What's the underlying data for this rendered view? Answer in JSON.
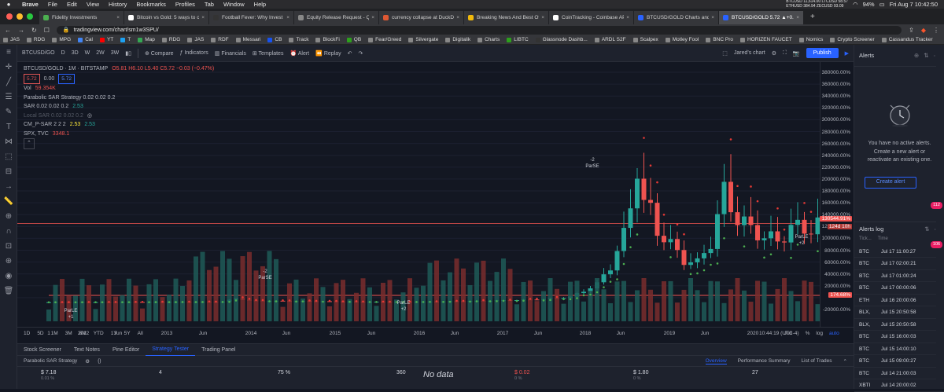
{
  "menubar": {
    "app": "Brave",
    "items": [
      "File",
      "Edit",
      "View",
      "History",
      "Bookmarks",
      "Profiles",
      "Tab",
      "Window",
      "Help"
    ],
    "ticker1": "BTCUSD 11,614.00 LTCUSD 58.57",
    "ticker2": "ETHUSD 384.94  ZECUSD 93.09",
    "battery": "94%",
    "datetime": "Fri Aug 7  10:42:50"
  },
  "tabs": [
    {
      "title": "Fidelity Investments",
      "color": "#4caf50"
    },
    {
      "title": "Bitcoin vs Gold: 5 ways to comp",
      "color": "#fff"
    },
    {
      "title": "Football Fever: Why Invest in the",
      "color": "#333"
    },
    {
      "title": "Equity Release Request - Quant",
      "color": "#888"
    },
    {
      "title": "currency collapse at DuckDuckG",
      "color": "#de5833"
    },
    {
      "title": "Breaking News And Best Of The",
      "color": "#f0b90b"
    },
    {
      "title": "CoinTracking - Coinbase API Im",
      "color": "#fff"
    },
    {
      "title": "BTCUSD/GOLD Charts and Quo",
      "color": "#2962ff"
    },
    {
      "title": "BTCUSD/GOLD 5.72 ▲+0.35%",
      "color": "#2962ff"
    }
  ],
  "url": "tradingview.com/chart/sm1w3SPU/",
  "bookmarks": [
    {
      "label": "JAS",
      "color": "#888"
    },
    {
      "label": "RDG",
      "color": "#888"
    },
    {
      "label": "MPG",
      "color": "#888"
    },
    {
      "label": "Cal",
      "color": "#4285f4"
    },
    {
      "label": "YT",
      "color": "#f00"
    },
    {
      "label": "T",
      "color": "#1da1f2"
    },
    {
      "label": "Map",
      "color": "#34a853"
    },
    {
      "label": "RDG",
      "color": "#888"
    },
    {
      "label": "JAS",
      "color": "#888"
    },
    {
      "label": "RDF",
      "color": "#888"
    },
    {
      "label": "Messari",
      "color": "#888"
    },
    {
      "label": "CB",
      "color": "#1652f0"
    },
    {
      "label": "Track",
      "color": "#888"
    },
    {
      "label": "BlockFi",
      "color": "#888"
    },
    {
      "label": "QB",
      "color": "#2ca01c"
    },
    {
      "label": "Fear/Greed",
      "color": "#888"
    },
    {
      "label": "Silvergate",
      "color": "#888"
    },
    {
      "label": "Digitalik",
      "color": "#888"
    },
    {
      "label": "Charts",
      "color": "#888"
    },
    {
      "label": "LIBTC",
      "color": "#2ca01c"
    },
    {
      "label": "Glassnode Dashb...",
      "color": "#333"
    },
    {
      "label": "ARDL S2F",
      "color": "#888"
    },
    {
      "label": "Scalpex",
      "color": "#888"
    },
    {
      "label": "Motley Fool",
      "color": "#888"
    },
    {
      "label": "BNC Pro",
      "color": "#888"
    },
    {
      "label": "HORIZEN FAUCET",
      "color": "#888"
    },
    {
      "label": "Nomics",
      "color": "#888"
    },
    {
      "label": "Crypto Screener",
      "color": "#888"
    },
    {
      "label": "Cassandus Tracker",
      "color": "#888"
    }
  ],
  "toolbar": {
    "symbol": "BTCUSD/GO",
    "intervals": [
      "D",
      "3D",
      "W",
      "2W",
      "3W"
    ],
    "compare": "Compare",
    "indicators": "Indicators",
    "financials": "Financials",
    "templates": "Templates",
    "alert": "Alert",
    "replay": "Replay",
    "layout": "Jared's chart",
    "publish": "Publish"
  },
  "legend": {
    "title": "BTCUSD/GOLD · 1M · BITSTAMP",
    "ohlc": "O5.81 H6.10 L5.40 C5.72 −0.03 (−0.47%)",
    "price_sell": "5.72",
    "spread": "0.00",
    "price_buy": "5.72",
    "vol_label": "Vol",
    "vol_value": "59.354K",
    "strategy": "Parabolic SAR Strategy 0.02 0.02 0.2",
    "sar_label": "SAR 0.02 0.02 0.2",
    "sar_value": "2.53",
    "local_sar": "Local SAR 0.02 0.02 0.2",
    "cm_label": "CM_P-SAR 2 2 2",
    "cm_v1": "2.53",
    "cm_v2": "2.53",
    "spx_label": "SPX, TVC",
    "spx_value": "3348.1"
  },
  "chart_data": {
    "type": "candlestick",
    "y_unit": "%",
    "y_ticks": [
      "380000.00%",
      "360000.00%",
      "340000.00%",
      "320000.00%",
      "300000.00%",
      "280000.00%",
      "260000.00%",
      "240000.00%",
      "220000.00%",
      "200000.00%",
      "180000.00%",
      "160000.00%",
      "140000.00%",
      "120000.00%",
      "100000.00%",
      "80000.00%",
      "60000.00%",
      "40000.00%",
      "20000.00%",
      "-20000.00%"
    ],
    "x_ticks": [
      "1",
      "2012",
      "Jun",
      "2013",
      "Jun",
      "2014",
      "Jun",
      "2015",
      "Jun",
      "2016",
      "Jun",
      "2017",
      "Jun",
      "2018",
      "Jun",
      "2019",
      "Jun",
      "2020",
      "Jun"
    ],
    "price_tag": "130544.91%",
    "price_tag2": "124d 10h",
    "low_tag": "174.68%",
    "annotations": [
      {
        "text": "ParLE",
        "sub": "+1"
      },
      {
        "text": "-2",
        "sub": "ParSE"
      },
      {
        "text": "ParLE",
        "sub": "+2"
      },
      {
        "text": "-2",
        "sub": "ParSE"
      },
      {
        "text": "ParLE",
        "sub": "+2"
      }
    ],
    "up_color": "#26a69a",
    "down_color": "#ef5350"
  },
  "range_buttons": [
    "1D",
    "5D",
    "1M",
    "3M",
    "6M",
    "YTD",
    "1Y",
    "5Y",
    "All"
  ],
  "time_info": {
    "clock": "10:44:19 (UTC-4)",
    "pct": "%",
    "log": "log",
    "auto": "auto"
  },
  "bottom_tabs": [
    "Stock Screener",
    "Text Notes",
    "Pine Editor",
    "Strategy Tester",
    "Trading Panel"
  ],
  "strategy_bar": {
    "name": "Parabolic SAR Strategy",
    "subtabs": [
      "Overview",
      "Performance Summary",
      "List of Trades"
    ]
  },
  "stats": {
    "net_profit": "$ 7.18",
    "net_profit_sub": "0.01 %",
    "trades": "4",
    "pct_profitable": "75 %",
    "profit_factor": "360",
    "nodata": "No data",
    "drawdown": "$ 0.02",
    "drawdown_sub": "0 %",
    "avg_trade": "$ 1.80",
    "avg_trade_sub": "0 %",
    "bars": "27"
  },
  "alerts": {
    "title": "Alerts",
    "message": "You have no active alerts. Create a new alert or reactivate an existing one.",
    "create": "Create alert",
    "log_title": "Alerts log",
    "col_ticker": "Tick...",
    "col_time": "Time",
    "log": [
      {
        "ticker": "BTC",
        "time": "Jul 17 11:00:27"
      },
      {
        "ticker": "BTC",
        "time": "Jul 17 02:00:21"
      },
      {
        "ticker": "BTC",
        "time": "Jul 17 01:00:24"
      },
      {
        "ticker": "BTC",
        "time": "Jul 17 00:00:06"
      },
      {
        "ticker": "ETH",
        "time": "Jul 16 20:00:06"
      },
      {
        "ticker": "BLX,",
        "time": "Jul 15 20:50:58"
      },
      {
        "ticker": "BLX,",
        "time": "Jul 15 20:50:58"
      },
      {
        "ticker": "BTC",
        "time": "Jul 15 16:00:03"
      },
      {
        "ticker": "BTC",
        "time": "Jul 15 14:00:10"
      },
      {
        "ticker": "BTC",
        "time": "Jul 15 09:00:27"
      },
      {
        "ticker": "BTC",
        "time": "Jul 14 21:00:03"
      },
      {
        "ticker": "XBTI",
        "time": "Jul 14 20:00:02"
      }
    ],
    "badge1": "112",
    "badge2": "106"
  }
}
